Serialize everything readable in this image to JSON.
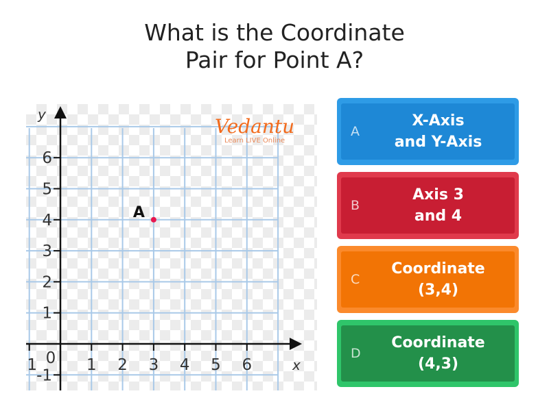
{
  "question": {
    "title": "What is the Coordinate\nPair for Point A?"
  },
  "answers": [
    {
      "letter": "A",
      "text": "X-Axis\nand Y-Axis",
      "color": "#2e9be6",
      "shade": "#1e88d6"
    },
    {
      "letter": "B",
      "text": "Axis 3\nand 4",
      "color": "#e03a4c",
      "shade": "#c81e33"
    },
    {
      "letter": "C",
      "text": "Coordinate\n(3,4)",
      "color": "#fb8a2c",
      "shade": "#f27405"
    },
    {
      "letter": "D",
      "text": "Coordinate\n(4,3)",
      "color": "#2fc56a",
      "shade": "#23904a"
    }
  ],
  "logo": {
    "brand": "Vedantu",
    "tagline": "Learn LIVE Online"
  },
  "chart_data": {
    "type": "scatter",
    "xlabel": "x",
    "ylabel": "y",
    "xlim": [
      -1,
      6
    ],
    "ylim": [
      -1,
      6
    ],
    "x_ticks": [
      "1",
      "0",
      "1",
      "2",
      "3",
      "4",
      "5",
      "6"
    ],
    "y_ticks": [
      "-1",
      "1",
      "2",
      "3",
      "4",
      "5",
      "6"
    ],
    "grid": true,
    "points": [
      {
        "label": "A",
        "x": 3,
        "y": 4,
        "color": "#e8174f"
      }
    ]
  }
}
